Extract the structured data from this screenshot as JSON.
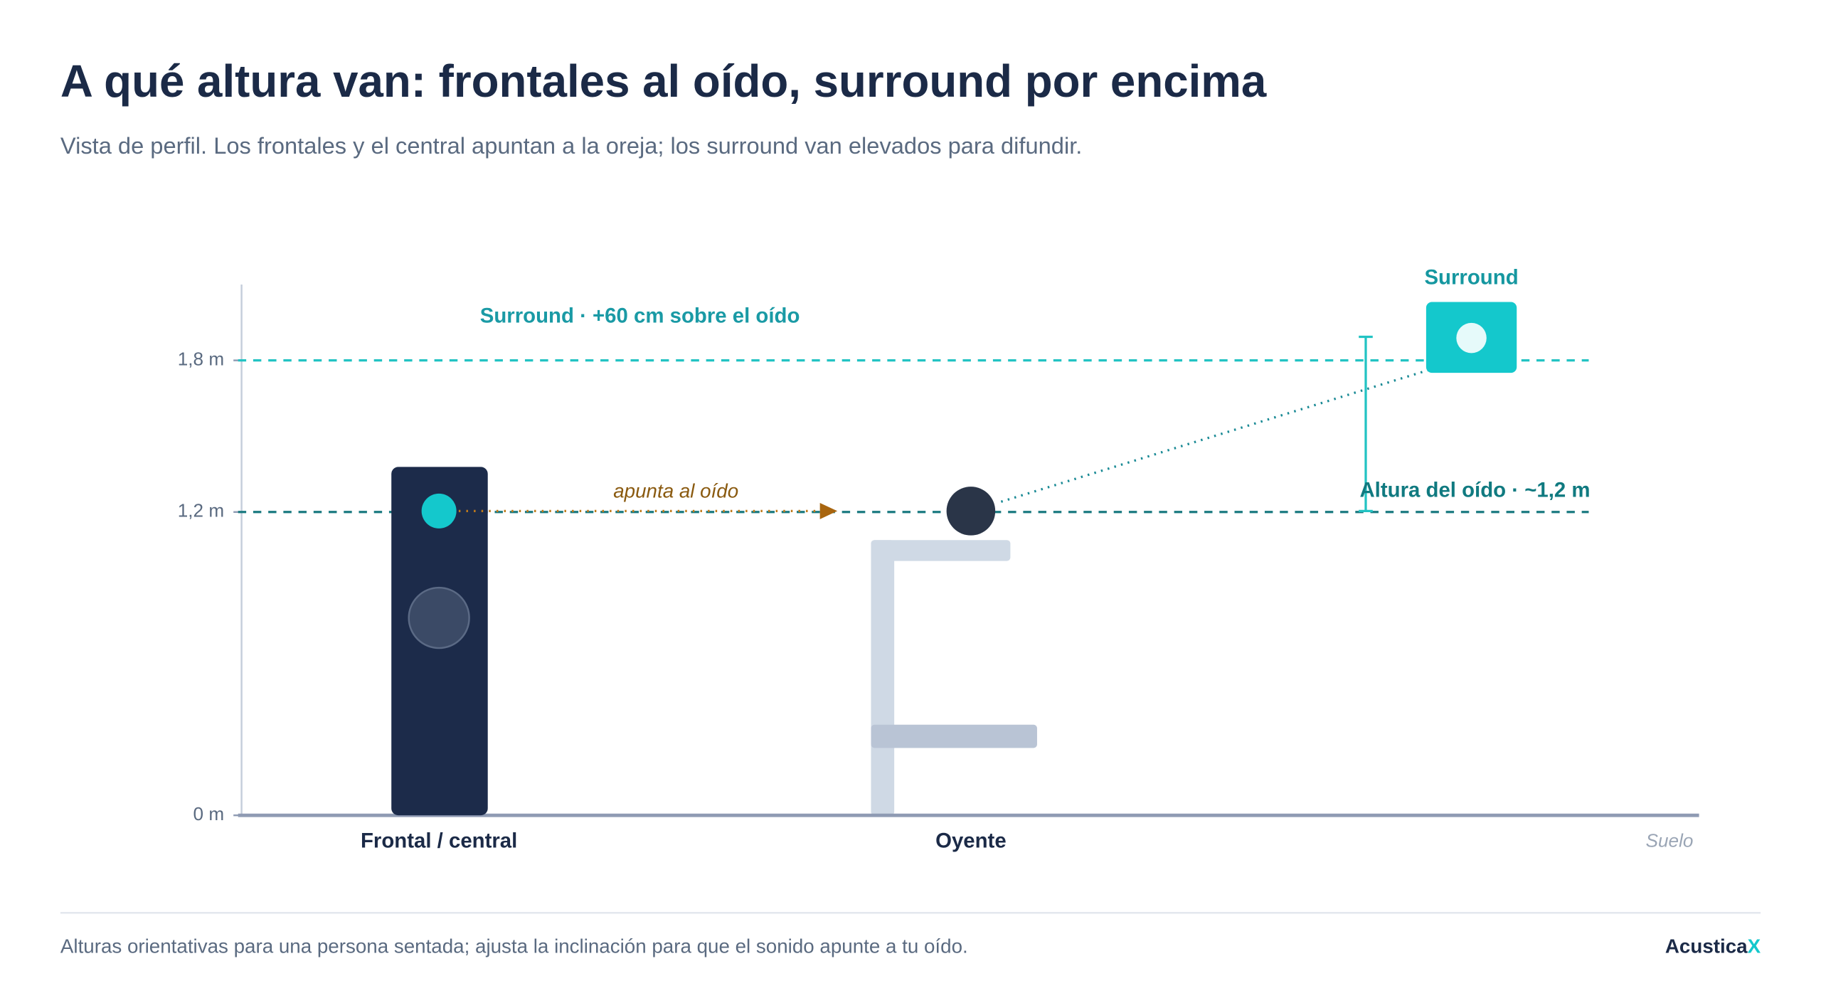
{
  "header": {
    "title": "A qué altura van: frontales al oído, surround por encima",
    "subtitle": "Vista de perfil. Los frontales y el central apuntan a la oreja; los surround van elevados para difundir."
  },
  "axis": {
    "ylim": [
      0,
      2.1
    ],
    "ticks": [
      {
        "value": 0,
        "label": "0 m"
      },
      {
        "value": 1.2,
        "label": "1,2 m"
      },
      {
        "value": 1.8,
        "label": "1,8 m"
      }
    ]
  },
  "annotations": {
    "surround_line": "Surround · +60 cm sobre el oído",
    "aim": "apunta al oído",
    "surround": "Surround",
    "ear_height": "Altura del oído · ~1,2 m"
  },
  "labels": {
    "front": "Frontal / central",
    "listener": "Oyente",
    "floor": "Suelo"
  },
  "footer": {
    "note": "Alturas orientativas para una persona sentada; ajusta la inclinación para que el sonido apunte a tu oído.",
    "brand": "Acustica",
    "brand_accent": "X"
  }
}
